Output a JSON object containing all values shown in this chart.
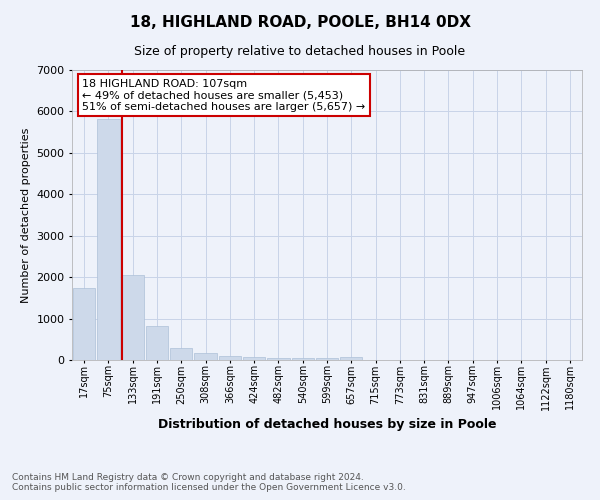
{
  "title": "18, HIGHLAND ROAD, POOLE, BH14 0DX",
  "subtitle": "Size of property relative to detached houses in Poole",
  "xlabel": "Distribution of detached houses by size in Poole",
  "ylabel": "Number of detached properties",
  "footnote": "Contains HM Land Registry data © Crown copyright and database right 2024.\nContains public sector information licensed under the Open Government Licence v3.0.",
  "categories": [
    "17sqm",
    "75sqm",
    "133sqm",
    "191sqm",
    "250sqm",
    "308sqm",
    "366sqm",
    "424sqm",
    "482sqm",
    "540sqm",
    "599sqm",
    "657sqm",
    "715sqm",
    "773sqm",
    "831sqm",
    "889sqm",
    "947sqm",
    "1006sqm",
    "1064sqm",
    "1122sqm",
    "1180sqm"
  ],
  "values": [
    1750,
    5820,
    2050,
    820,
    300,
    175,
    100,
    70,
    50,
    45,
    45,
    70,
    0,
    0,
    0,
    0,
    0,
    0,
    0,
    0,
    0
  ],
  "bar_color": "#cdd9ea",
  "bar_edge_color": "#adc0d8",
  "bar_width": 0.92,
  "vline_color": "#cc0000",
  "vline_x_index": 1.55,
  "ylim": [
    0,
    7000
  ],
  "yticks": [
    0,
    1000,
    2000,
    3000,
    4000,
    5000,
    6000,
    7000
  ],
  "annotation_text": "18 HIGHLAND ROAD: 107sqm\n← 49% of detached houses are smaller (5,453)\n51% of semi-detached houses are larger (5,657) →",
  "annotation_box_facecolor": "#ffffff",
  "annotation_box_edgecolor": "#cc0000",
  "grid_color": "#c8d4e8",
  "background_color": "#eef2fa",
  "title_fontsize": 11,
  "subtitle_fontsize": 9,
  "xlabel_fontsize": 9,
  "ylabel_fontsize": 8,
  "annotation_fontsize": 8,
  "tick_fontsize": 7,
  "footnote_fontsize": 6.5
}
